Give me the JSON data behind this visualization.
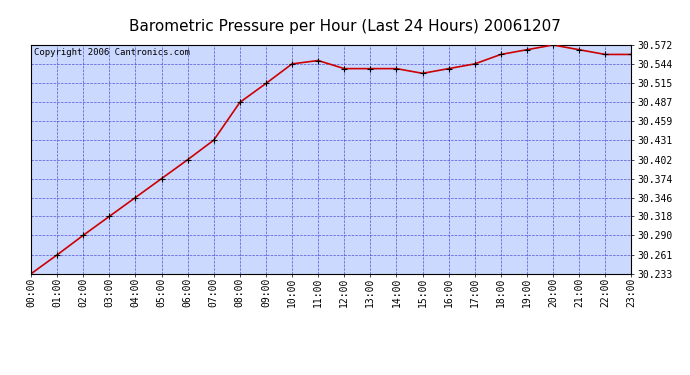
{
  "title": "Barometric Pressure per Hour (Last 24 Hours) 20061207",
  "copyright": "Copyright 2006 Cantronics.com",
  "x_labels": [
    "00:00",
    "01:00",
    "02:00",
    "03:00",
    "04:00",
    "05:00",
    "06:00",
    "07:00",
    "08:00",
    "09:00",
    "10:00",
    "11:00",
    "12:00",
    "13:00",
    "14:00",
    "15:00",
    "16:00",
    "17:00",
    "18:00",
    "19:00",
    "20:00",
    "21:00",
    "22:00",
    "23:00"
  ],
  "y_values": [
    30.233,
    30.261,
    30.29,
    30.318,
    30.346,
    30.374,
    30.402,
    30.431,
    30.487,
    30.515,
    30.544,
    30.549,
    30.537,
    30.537,
    30.537,
    30.53,
    30.537,
    30.544,
    30.558,
    30.565,
    30.572,
    30.565,
    30.558,
    30.558
  ],
  "y_ticks": [
    30.233,
    30.261,
    30.29,
    30.318,
    30.346,
    30.374,
    30.402,
    30.431,
    30.459,
    30.487,
    30.515,
    30.544,
    30.572
  ],
  "y_min": 30.233,
  "y_max": 30.572,
  "line_color": "#cc0000",
  "bg_color": "#ffffff",
  "plot_bg_color": "#ccd9ff",
  "grid_color": "#3333cc",
  "title_fontsize": 11,
  "copyright_fontsize": 6.5,
  "tick_fontsize": 7,
  "ytick_fontsize": 7
}
